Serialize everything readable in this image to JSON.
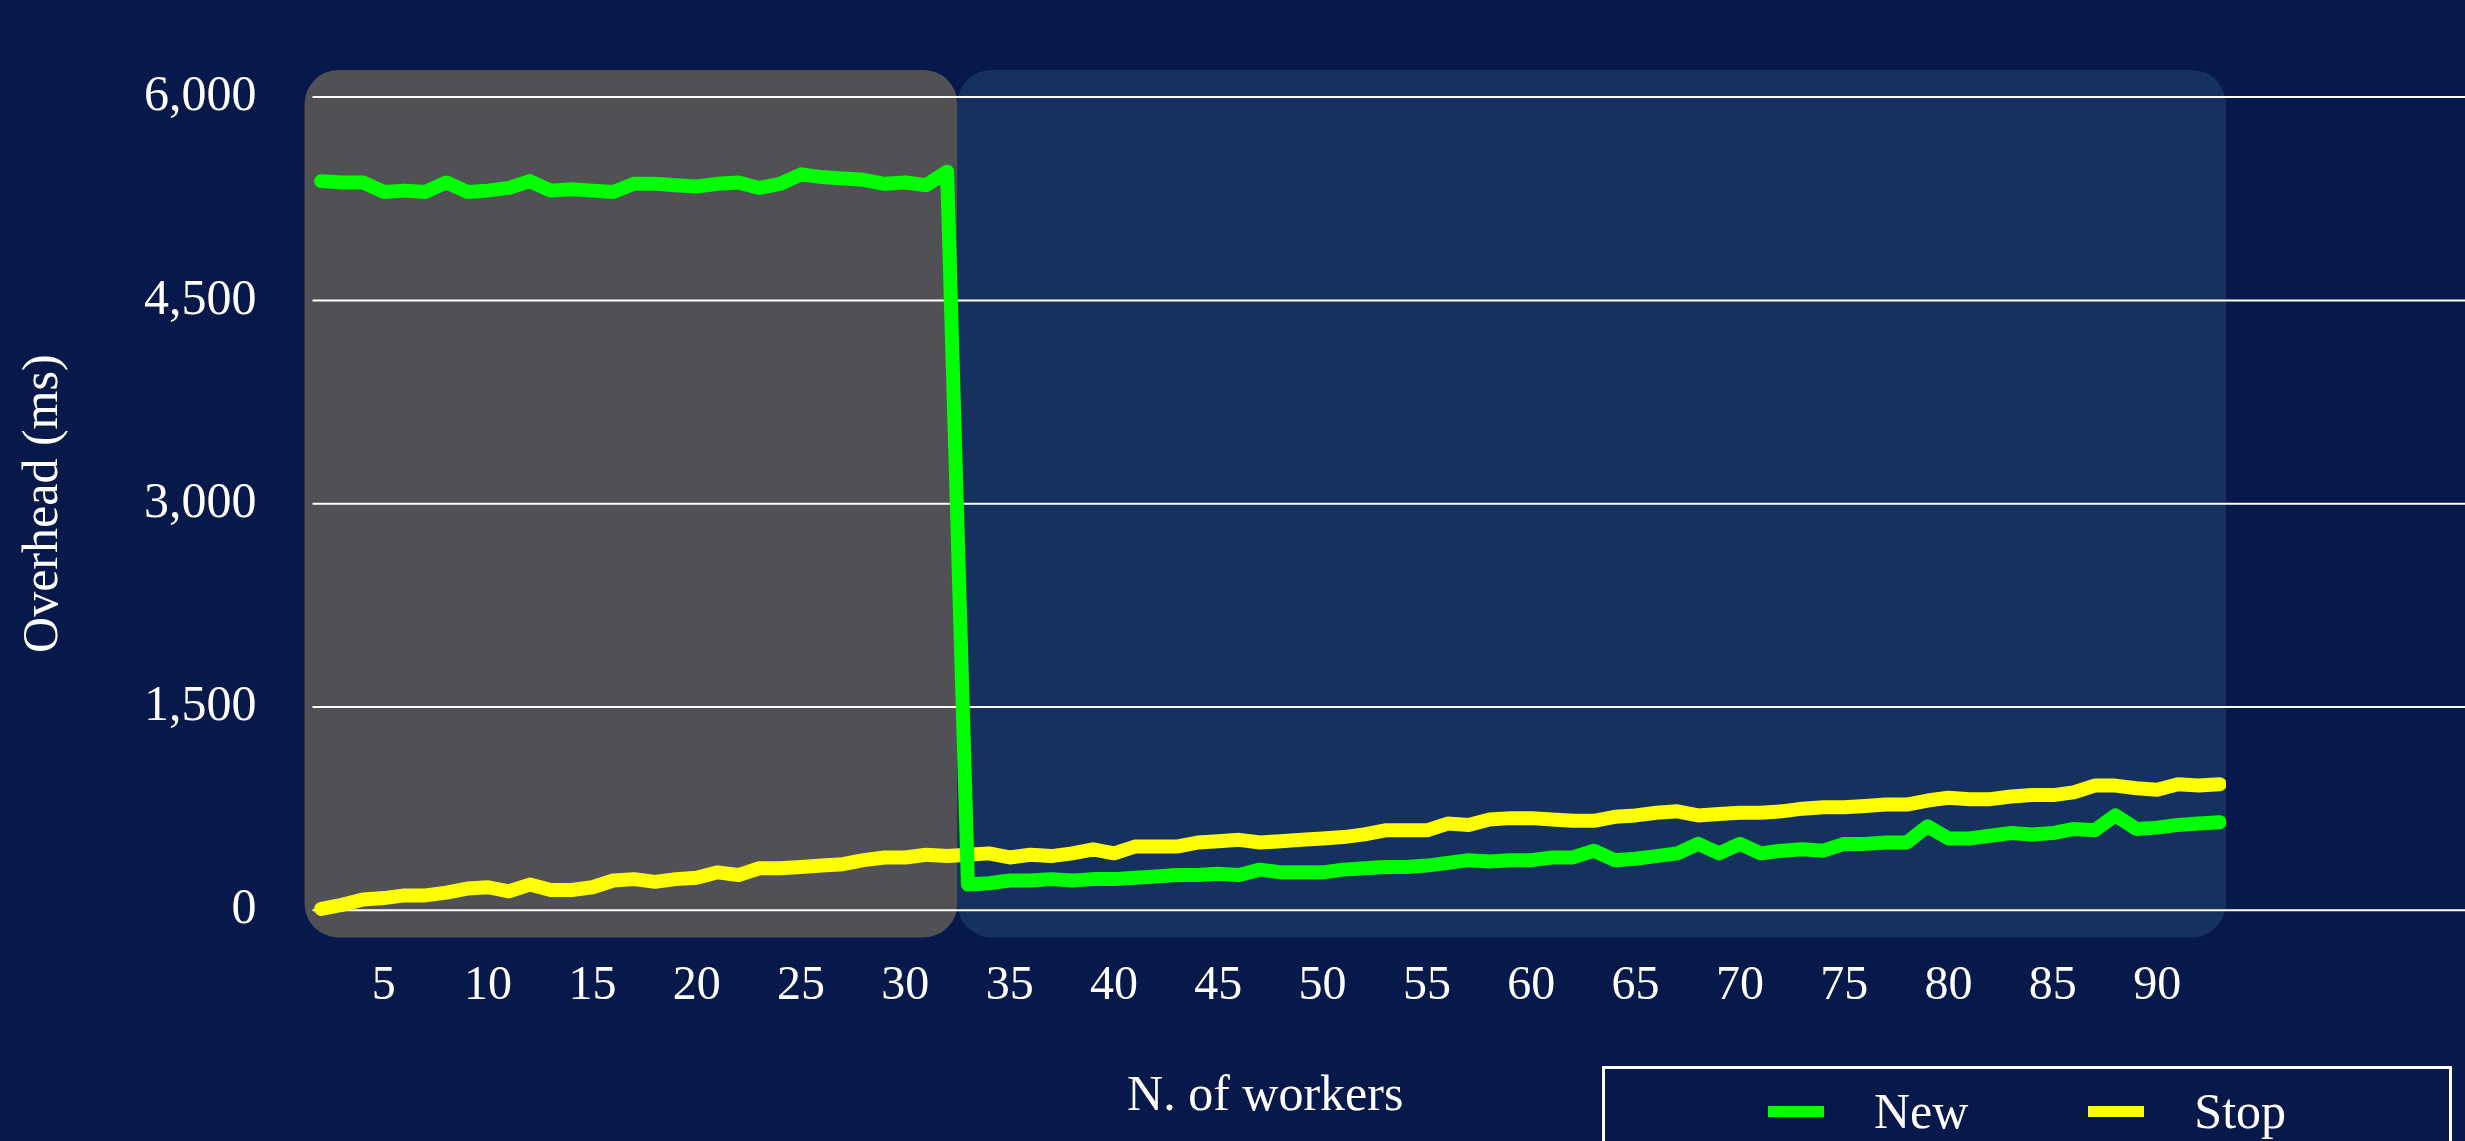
{
  "chart_data": {
    "type": "line",
    "xlabel": "N. of workers",
    "ylabel": "Overhead (ms)",
    "x": [
      2,
      3,
      4,
      5,
      6,
      7,
      8,
      9,
      10,
      11,
      12,
      13,
      14,
      15,
      16,
      17,
      18,
      19,
      20,
      21,
      22,
      23,
      24,
      25,
      26,
      27,
      28,
      29,
      30,
      31,
      32,
      33,
      34,
      35,
      36,
      37,
      38,
      39,
      40,
      41,
      42,
      43,
      44,
      45,
      46,
      47,
      48,
      49,
      50,
      51,
      52,
      53,
      54,
      55,
      56,
      57,
      58,
      59,
      60,
      61,
      62,
      63,
      64,
      65,
      66,
      67,
      68,
      69,
      70,
      71,
      72,
      73,
      74,
      75,
      76,
      77,
      78,
      79,
      80,
      81,
      82,
      83,
      84,
      85,
      86,
      87,
      88,
      89,
      90,
      91,
      92,
      93
    ],
    "series": [
      {
        "name": "New",
        "color": "#00ff00",
        "values": [
          5380,
          5370,
          5370,
          5300,
          5310,
          5300,
          5370,
          5300,
          5310,
          5330,
          5380,
          5310,
          5320,
          5310,
          5300,
          5360,
          5360,
          5350,
          5340,
          5360,
          5370,
          5330,
          5360,
          5430,
          5410,
          5400,
          5390,
          5360,
          5370,
          5350,
          5450,
          190,
          200,
          220,
          220,
          230,
          220,
          230,
          230,
          240,
          250,
          260,
          260,
          270,
          260,
          300,
          280,
          280,
          280,
          300,
          310,
          320,
          320,
          330,
          350,
          370,
          360,
          370,
          370,
          390,
          390,
          440,
          370,
          380,
          400,
          420,
          490,
          420,
          490,
          420,
          440,
          450,
          440,
          490,
          490,
          500,
          500,
          620,
          530,
          530,
          550,
          570,
          560,
          570,
          600,
          590,
          700,
          600,
          610,
          630,
          640,
          650
        ]
      },
      {
        "name": "Stop",
        "color": "#ffff00",
        "values": [
          10,
          40,
          80,
          90,
          110,
          110,
          130,
          160,
          170,
          140,
          190,
          150,
          150,
          170,
          220,
          230,
          210,
          230,
          240,
          280,
          260,
          310,
          310,
          320,
          330,
          340,
          370,
          390,
          390,
          410,
          400,
          410,
          420,
          390,
          410,
          400,
          420,
          450,
          420,
          470,
          470,
          470,
          500,
          510,
          520,
          500,
          510,
          520,
          530,
          540,
          560,
          590,
          590,
          590,
          640,
          630,
          670,
          680,
          680,
          670,
          660,
          660,
          690,
          700,
          720,
          730,
          700,
          710,
          720,
          720,
          730,
          750,
          760,
          760,
          770,
          780,
          780,
          810,
          830,
          820,
          820,
          840,
          850,
          850,
          870,
          920,
          920,
          900,
          890,
          930,
          920,
          930
        ]
      }
    ],
    "xlim": [
      1.2,
      93.3
    ],
    "xticks": [
      5,
      10,
      15,
      20,
      25,
      30,
      35,
      40,
      45,
      50,
      55,
      60,
      65,
      70,
      75,
      80,
      85,
      90
    ],
    "ylim": [
      -200,
      6200
    ],
    "yticks": [
      {
        "value": 0,
        "label": "0"
      },
      {
        "value": 1500,
        "label": "1,500"
      },
      {
        "value": 3000,
        "label": "3,000"
      },
      {
        "value": 4500,
        "label": "4,500"
      },
      {
        "value": 6000,
        "label": "6,000"
      }
    ],
    "bands": [
      {
        "axis": "x",
        "from": 1.2,
        "to": 32.5,
        "color": "#505055"
      },
      {
        "axis": "x",
        "from": 32.5,
        "to": 93.3,
        "color": "#15315e"
      }
    ],
    "grid": "y",
    "legend": "bottom right",
    "marker": "none",
    "line_style": "solid"
  }
}
